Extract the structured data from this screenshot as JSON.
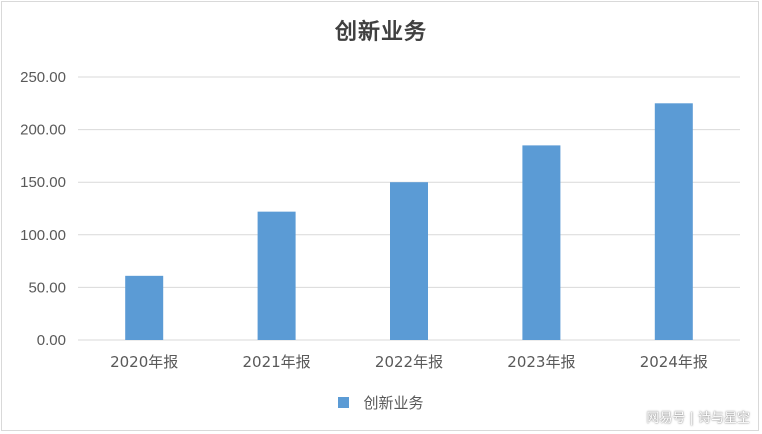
{
  "chart_data": {
    "type": "bar",
    "title": "创新业务",
    "categories": [
      "2020年报",
      "2021年报",
      "2022年报",
      "2023年报",
      "2024年报"
    ],
    "series": [
      {
        "name": "创新业务",
        "values": [
          61,
          122,
          150,
          185,
          225
        ]
      }
    ],
    "ylim": [
      0,
      250
    ],
    "yticks": [
      "0.00",
      "50.00",
      "100.00",
      "150.00",
      "200.00",
      "250.00"
    ],
    "xlabel": "",
    "ylabel": "",
    "grid": true,
    "legend_position": "bottom",
    "bar_color": "#5b9bd5",
    "grid_color": "#d9d9d9"
  },
  "watermark": "网易号 | 诗与星空"
}
